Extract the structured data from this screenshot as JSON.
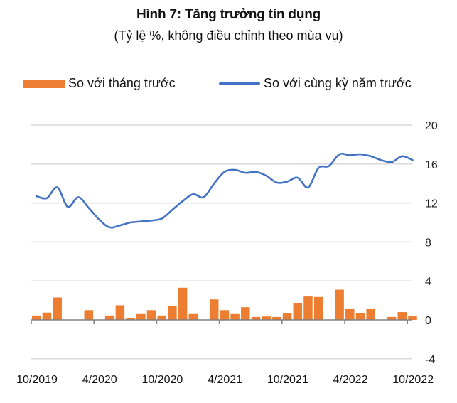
{
  "header": {
    "title": "Hình 7: Tăng trưởng tín dụng",
    "subtitle": "(Tỷ lệ %, không điều chỉnh theo mùa vụ)"
  },
  "legend": {
    "bar_label": "So với tháng trước",
    "line_label": "So với cùng kỳ năm trước"
  },
  "colors": {
    "bar": "#ED7D31",
    "line": "#4472C4",
    "grid": "#D9D9D9",
    "axis": "#808080"
  },
  "chart_data": {
    "type": "bar+line",
    "title": "Hình 7: Tăng trưởng tín dụng",
    "subtitle": "(Tỷ lệ %, không điều chỉnh theo mùa vụ)",
    "xlabel": "",
    "ylabel": "",
    "ylim": [
      -4,
      20
    ],
    "yticks": [
      -4,
      0,
      4,
      8,
      12,
      16,
      20
    ],
    "y_axis_position": "right",
    "grid": true,
    "legend_position": "top",
    "xtick_labels": [
      "10/2019",
      "4/2020",
      "10/2020",
      "4/2021",
      "10/2021",
      "4/2022",
      "10/2022"
    ],
    "categories": [
      "10/2019",
      "11/2019",
      "12/2019",
      "1/2020",
      "2/2020",
      "3/2020",
      "4/2020",
      "5/2020",
      "6/2020",
      "7/2020",
      "8/2020",
      "9/2020",
      "10/2020",
      "11/2020",
      "12/2020",
      "1/2021",
      "2/2021",
      "3/2021",
      "4/2021",
      "5/2021",
      "6/2021",
      "7/2021",
      "8/2021",
      "9/2021",
      "10/2021",
      "11/2021",
      "12/2021",
      "1/2022",
      "2/2022",
      "3/2022",
      "4/2022",
      "5/2022",
      "6/2022",
      "7/2022",
      "8/2022",
      "9/2022",
      "10/2022"
    ],
    "series": [
      {
        "name": "So với tháng trước",
        "type": "bar",
        "values": [
          0.45,
          0.75,
          2.3,
          0,
          0,
          1.0,
          0,
          0.45,
          1.5,
          0.15,
          0.6,
          1.0,
          0.45,
          1.4,
          3.3,
          0.6,
          0,
          2.1,
          1.0,
          0.6,
          1.3,
          0.3,
          0.35,
          0.3,
          0.7,
          1.7,
          2.4,
          2.35,
          0,
          3.1,
          1.1,
          0.7,
          1.1,
          0,
          0.3,
          0.8,
          0.4
        ]
      },
      {
        "name": "So với cùng kỳ năm trước",
        "type": "line",
        "values": [
          12.7,
          12.5,
          13.6,
          11.6,
          12.6,
          11.5,
          10.3,
          9.5,
          9.7,
          10.0,
          10.1,
          10.2,
          10.4,
          11.3,
          12.2,
          12.9,
          12.6,
          14.0,
          15.2,
          15.4,
          15.1,
          15.2,
          14.8,
          14.1,
          14.2,
          14.6,
          13.6,
          15.6,
          15.8,
          17.0,
          16.9,
          17.0,
          16.8,
          16.4,
          16.2,
          16.8,
          16.4
        ]
      }
    ]
  }
}
